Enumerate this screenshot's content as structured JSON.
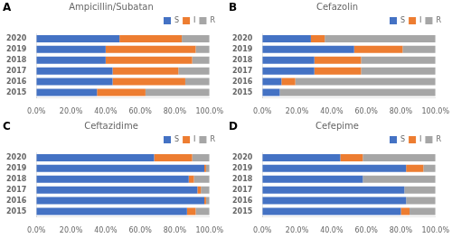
{
  "chart_data": [
    {
      "type": "bar",
      "orientation": "horizontal",
      "stacked": true,
      "title": "Ampicillin/Subatan",
      "annotations": [
        "A"
      ],
      "categories": [
        "2020",
        "2019",
        "2018",
        "2017",
        "2016",
        "2015"
      ],
      "series": [
        {
          "name": "S",
          "color": "#4472C4",
          "values": [
            48,
            40,
            40,
            44,
            44,
            35
          ]
        },
        {
          "name": "I",
          "color": "#ED7D31",
          "values": [
            36,
            52,
            50,
            38,
            42,
            28
          ]
        },
        {
          "name": "R",
          "color": "#A6A6A6",
          "values": [
            16,
            8,
            10,
            18,
            14,
            37
          ]
        }
      ],
      "xlim": [
        0,
        100
      ],
      "xticks": [
        {
          "value": 0,
          "label": "0.0%"
        },
        {
          "value": 20,
          "label": "20.0%"
        },
        {
          "value": 40,
          "label": "40.0%"
        },
        {
          "value": 60,
          "label": "60.0%"
        },
        {
          "value": 80,
          "label": "80.0%"
        },
        {
          "value": 100,
          "label": "100.0%"
        }
      ],
      "grid": false,
      "legend": "upper right"
    },
    {
      "type": "bar",
      "orientation": "horizontal",
      "stacked": true,
      "title": "Cefazolin",
      "annotations": [
        "B"
      ],
      "categories": [
        "2020",
        "2019",
        "2018",
        "2017",
        "2016",
        "2015"
      ],
      "series": [
        {
          "name": "S",
          "color": "#4472C4",
          "values": [
            28,
            53,
            30,
            30,
            11,
            10
          ]
        },
        {
          "name": "I",
          "color": "#ED7D31",
          "values": [
            8,
            28,
            27,
            27,
            8,
            0
          ]
        },
        {
          "name": "R",
          "color": "#A6A6A6",
          "values": [
            64,
            19,
            43,
            43,
            81,
            90
          ]
        }
      ],
      "xlim": [
        0,
        100
      ],
      "xticks": [
        {
          "value": 0,
          "label": "0.0%"
        },
        {
          "value": 20,
          "label": "20.0%"
        },
        {
          "value": 40,
          "label": "40.0%"
        },
        {
          "value": 60,
          "label": "60.0%"
        },
        {
          "value": 80,
          "label": "80.0%"
        },
        {
          "value": 100,
          "label": "100.0%"
        }
      ],
      "grid": false,
      "legend": "upper right"
    },
    {
      "type": "bar",
      "orientation": "horizontal",
      "stacked": true,
      "title": "Ceftazidime",
      "annotations": [
        "C"
      ],
      "categories": [
        "2020",
        "2019",
        "2018",
        "2017",
        "2016",
        "2015"
      ],
      "series": [
        {
          "name": "S",
          "color": "#4472C4",
          "values": [
            68,
            97,
            88,
            93,
            97,
            87
          ]
        },
        {
          "name": "I",
          "color": "#ED7D31",
          "values": [
            22,
            1,
            3,
            2,
            1,
            5
          ]
        },
        {
          "name": "R",
          "color": "#A6A6A6",
          "values": [
            10,
            2,
            9,
            5,
            2,
            8
          ]
        }
      ],
      "xlim": [
        0,
        100
      ],
      "xticks": [
        {
          "value": 0,
          "label": "0.0%"
        },
        {
          "value": 20,
          "label": "20.0%"
        },
        {
          "value": 40,
          "label": "40.0%"
        },
        {
          "value": 60,
          "label": "60.0%"
        },
        {
          "value": 80,
          "label": "80.0%"
        },
        {
          "value": 100,
          "label": "100.0%"
        }
      ],
      "grid": false,
      "legend": "upper right"
    },
    {
      "type": "bar",
      "orientation": "horizontal",
      "stacked": true,
      "title": "Cefepime",
      "annotations": [
        "D"
      ],
      "categories": [
        "2020",
        "2019",
        "2018",
        "2017",
        "2016",
        "2015"
      ],
      "series": [
        {
          "name": "S",
          "color": "#4472C4",
          "values": [
            45,
            83,
            58,
            82,
            83,
            80
          ]
        },
        {
          "name": "I",
          "color": "#ED7D31",
          "values": [
            13,
            10,
            0,
            0,
            0,
            5
          ]
        },
        {
          "name": "R",
          "color": "#A6A6A6",
          "values": [
            42,
            7,
            42,
            18,
            17,
            15
          ]
        }
      ],
      "xlim": [
        0,
        100
      ],
      "xticks": [
        {
          "value": 0,
          "label": "0.0%"
        },
        {
          "value": 20,
          "label": "20.0%"
        },
        {
          "value": 40,
          "label": "40.0%"
        },
        {
          "value": 60,
          "label": "60.0%"
        },
        {
          "value": 80,
          "label": "80.0%"
        },
        {
          "value": 100,
          "label": "100.0%"
        }
      ],
      "grid": false,
      "legend": "upper right"
    }
  ]
}
